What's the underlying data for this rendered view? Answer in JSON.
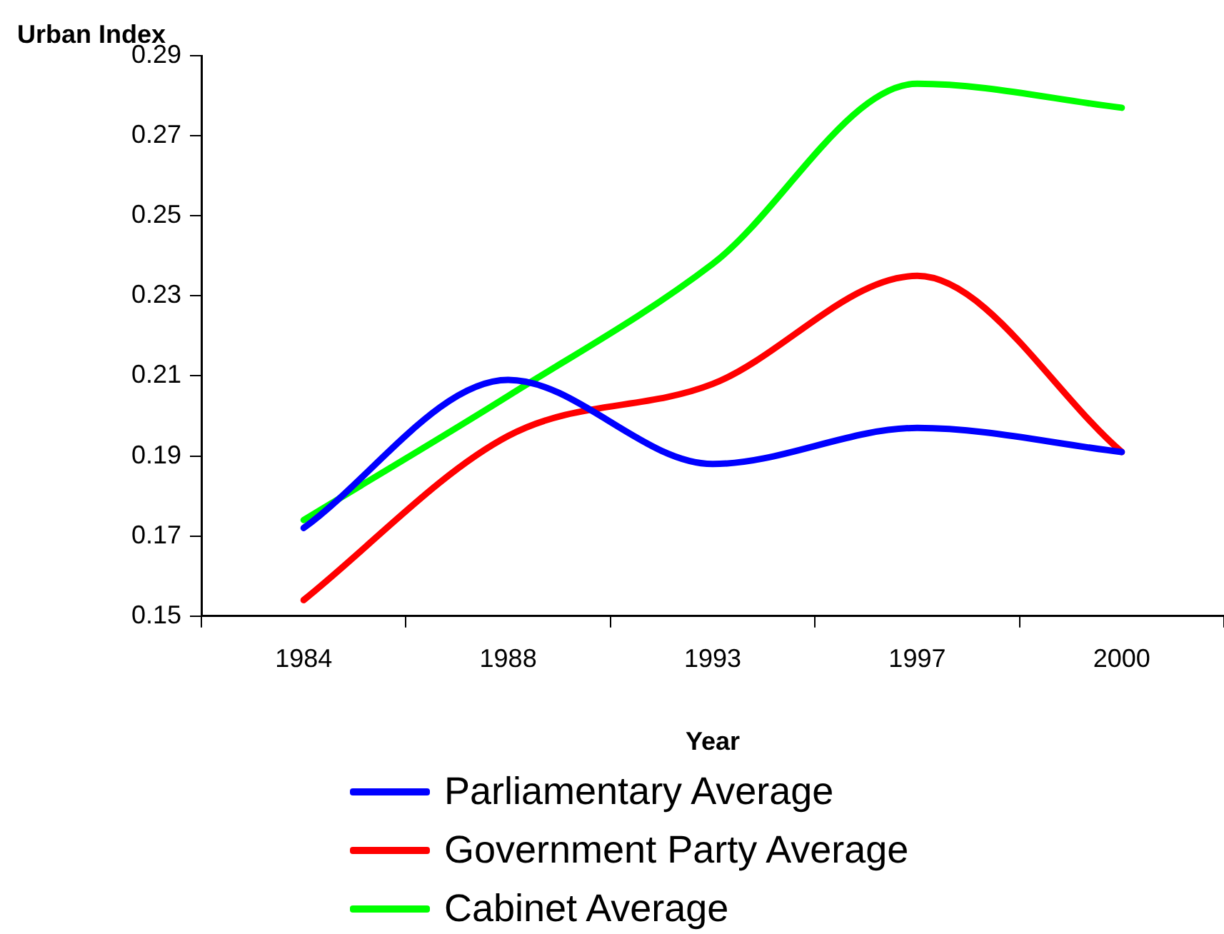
{
  "chart_data": {
    "type": "line",
    "ylabel": "Urban Index",
    "xlabel": "Year",
    "categories": [
      "1984",
      "1988",
      "1993",
      "1997",
      "2000"
    ],
    "series": [
      {
        "name": "Parliamentary Average",
        "color": "#0000ff",
        "values": [
          0.172,
          0.209,
          0.188,
          0.197,
          0.191
        ]
      },
      {
        "name": "Government Party Average",
        "color": "#ff0000",
        "values": [
          0.154,
          0.195,
          0.208,
          0.235,
          0.191
        ]
      },
      {
        "name": "Cabinet Average",
        "color": "#00ff00",
        "values": [
          0.174,
          0.205,
          0.238,
          0.283,
          0.277
        ]
      }
    ],
    "ylim": [
      0.15,
      0.29
    ],
    "yticks": [
      0.15,
      0.17,
      0.19,
      0.21,
      0.23,
      0.25,
      0.27,
      0.29
    ],
    "grid": false,
    "legend": "bottom",
    "marker": "none",
    "line_style": "solid"
  }
}
